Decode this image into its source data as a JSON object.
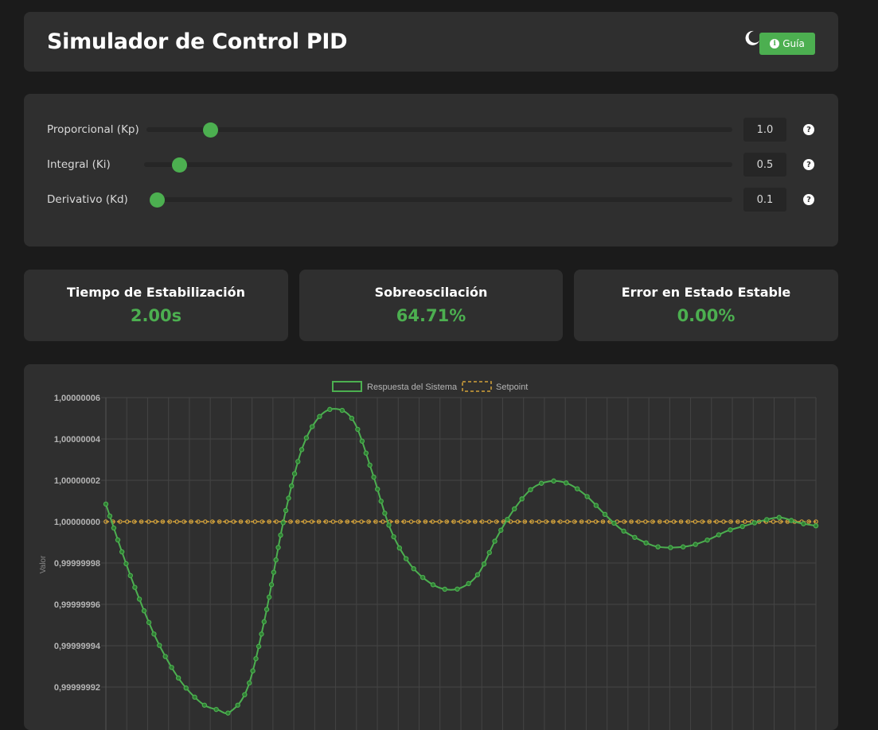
{
  "header": {
    "title": "Simulador de Control PID",
    "theme_icon": "moon-icon",
    "guide_label": "Guía",
    "guide_icon": "info-icon"
  },
  "controls": [
    {
      "label": "Proporcional (Kp)",
      "value": "1.0",
      "slider_fraction": 0.11,
      "help": "?"
    },
    {
      "label": "Integral (Ki)",
      "value": "0.5",
      "slider_fraction": 0.06,
      "help": "?"
    },
    {
      "label": "Derivativo (Kd)",
      "value": "0.1",
      "slider_fraction": 0.01,
      "help": "?"
    }
  ],
  "metrics": [
    {
      "label": "Tiempo de Estabilización",
      "value": "2.00s"
    },
    {
      "label": "Sobreoscilación",
      "value": "64.71%"
    },
    {
      "label": "Error en Estado Estable",
      "value": "0.00%"
    }
  ],
  "colors": {
    "accent": "#4caf50",
    "setpoint": "#d4a23a",
    "background": "#1b1b1b",
    "card": "#2f2f2f"
  },
  "chart_data": {
    "type": "line",
    "ylabel": "Valor",
    "ylim": [
      0.99999991,
      1.00000006
    ],
    "yticks": [
      "1,00000006",
      "1,00000004",
      "1,00000002",
      "1,00000000",
      "0,99999998",
      "0,99999996",
      "0,99999994",
      "0,99999992"
    ],
    "ytick_values": [
      1.00000006,
      1.00000004,
      1.00000002,
      1.0,
      0.99999998,
      0.99999996,
      0.99999994,
      0.99999992
    ],
    "legend_position": "top",
    "grid": true,
    "series": [
      {
        "name": "Respuesta del Sistema",
        "color": "#4caf50",
        "x": [
          0,
          7,
          14,
          21,
          28,
          35,
          42,
          49,
          56,
          63,
          70,
          80,
          90,
          100,
          110,
          120,
          130,
          140,
          150,
          160,
          170,
          180,
          190,
          200,
          210,
          220,
          230,
          240,
          250,
          260,
          270,
          280,
          290,
          300,
          310,
          320,
          330,
          340,
          350,
          360,
          370,
          380,
          390,
          400
        ],
        "values": [
          1.0000000085,
          0.9999999905,
          0.9999999735,
          0.999999958,
          0.999999944,
          0.9999999325,
          0.999999923,
          0.999999916,
          0.999999911,
          0.999999909,
          0.999999908,
          0.99999992,
          0.999999955,
          1.0,
          1.000000034,
          1.0000000505,
          1.0000000545,
          1.000000048,
          1.000000024,
          0.999999997,
          0.999999981,
          0.999999972,
          0.9999999675,
          0.999999968,
          0.999999975,
          0.999999992,
          1.000000006,
          1.000000016,
          1.0000000195,
          1.0000000185,
          1.000000013,
          1.0000000045,
          0.9999999965,
          0.9999999915,
          0.999999988,
          0.9999999875,
          0.9999999885,
          0.9999999915,
          0.9999999955,
          0.999999998,
          1.0000000005,
          1.000000002,
          0.9999999995,
          0.999999998
        ]
      },
      {
        "name": "Setpoint",
        "color": "#d4a23a",
        "x": [
          0,
          400
        ],
        "values": [
          1.0,
          1.0
        ]
      }
    ]
  }
}
